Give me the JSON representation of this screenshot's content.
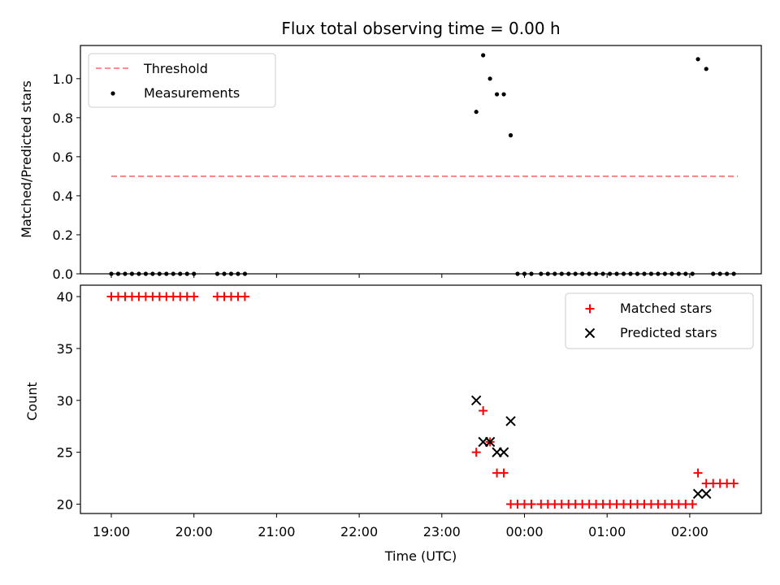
{
  "chart_data": [
    {
      "type": "scatter",
      "title": "Flux total observing time = 0.00 h",
      "ylabel": "Matched/Predicted stars",
      "xlabel": "",
      "ylim": [
        0,
        1.17
      ],
      "yticks": [
        "0.0",
        "0.2",
        "0.4",
        "0.6",
        "0.8",
        "1.0"
      ],
      "yticks_values": [
        0,
        0.2,
        0.4,
        0.6,
        0.8,
        1.0
      ],
      "legend_position": "top-left",
      "threshold": {
        "name": "Threshold",
        "y": 0.5,
        "x_start": "19:00",
        "x_end": "02:35",
        "color": "#ff7f7f",
        "style": "dashed"
      },
      "series": [
        {
          "name": "Measurements",
          "color": "#000000",
          "marker": "dot",
          "points": [
            [
              "19:00",
              0
            ],
            [
              "19:05",
              0
            ],
            [
              "19:10",
              0
            ],
            [
              "19:15",
              0
            ],
            [
              "19:20",
              0
            ],
            [
              "19:25",
              0
            ],
            [
              "19:30",
              0
            ],
            [
              "19:35",
              0
            ],
            [
              "19:40",
              0
            ],
            [
              "19:45",
              0
            ],
            [
              "19:50",
              0
            ],
            [
              "19:55",
              0
            ],
            [
              "20:00",
              0
            ],
            [
              "20:17",
              0
            ],
            [
              "20:22",
              0
            ],
            [
              "20:27",
              0
            ],
            [
              "20:32",
              0
            ],
            [
              "20:37",
              0
            ],
            [
              "23:25",
              0.83
            ],
            [
              "23:30",
              1.12
            ],
            [
              "23:35",
              1.0
            ],
            [
              "23:40",
              0.92
            ],
            [
              "23:45",
              0.92
            ],
            [
              "23:50",
              0.71
            ],
            [
              "23:55",
              0
            ],
            [
              "00:00",
              0
            ],
            [
              "00:05",
              0
            ],
            [
              "00:12",
              0
            ],
            [
              "00:17",
              0
            ],
            [
              "00:22",
              0
            ],
            [
              "00:27",
              0
            ],
            [
              "00:32",
              0
            ],
            [
              "00:37",
              0
            ],
            [
              "00:42",
              0
            ],
            [
              "00:47",
              0
            ],
            [
              "00:52",
              0
            ],
            [
              "00:57",
              0
            ],
            [
              "01:02",
              0
            ],
            [
              "01:07",
              0
            ],
            [
              "01:12",
              0
            ],
            [
              "01:17",
              0
            ],
            [
              "01:22",
              0
            ],
            [
              "01:27",
              0
            ],
            [
              "01:32",
              0
            ],
            [
              "01:37",
              0
            ],
            [
              "01:42",
              0
            ],
            [
              "01:47",
              0
            ],
            [
              "01:52",
              0
            ],
            [
              "01:57",
              0
            ],
            [
              "02:02",
              0
            ],
            [
              "02:06",
              1.1
            ],
            [
              "02:12",
              1.05
            ],
            [
              "02:17",
              0
            ],
            [
              "02:22",
              0
            ],
            [
              "02:27",
              0
            ],
            [
              "02:32",
              0
            ]
          ]
        }
      ]
    },
    {
      "type": "scatter",
      "title": "",
      "ylabel": "Count",
      "xlabel": "Time (UTC)",
      "ylim": [
        19.1,
        41.1
      ],
      "yticks": [
        "20",
        "25",
        "30",
        "35",
        "40"
      ],
      "yticks_values": [
        20,
        25,
        30,
        35,
        40
      ],
      "xticks": [
        "19:00",
        "20:00",
        "21:00",
        "22:00",
        "23:00",
        "00:00",
        "01:00",
        "02:00"
      ],
      "legend_position": "top-right",
      "series": [
        {
          "name": "Matched stars",
          "color": "#ff0000",
          "marker": "plus",
          "points": [
            [
              "19:00",
              40
            ],
            [
              "19:05",
              40
            ],
            [
              "19:10",
              40
            ],
            [
              "19:15",
              40
            ],
            [
              "19:20",
              40
            ],
            [
              "19:25",
              40
            ],
            [
              "19:30",
              40
            ],
            [
              "19:35",
              40
            ],
            [
              "19:40",
              40
            ],
            [
              "19:45",
              40
            ],
            [
              "19:50",
              40
            ],
            [
              "19:55",
              40
            ],
            [
              "20:00",
              40
            ],
            [
              "20:17",
              40
            ],
            [
              "20:22",
              40
            ],
            [
              "20:27",
              40
            ],
            [
              "20:32",
              40
            ],
            [
              "20:37",
              40
            ],
            [
              "23:25",
              25
            ],
            [
              "23:30",
              29
            ],
            [
              "23:35",
              26
            ],
            [
              "23:40",
              23
            ],
            [
              "23:45",
              23
            ],
            [
              "23:50",
              20
            ],
            [
              "23:55",
              20
            ],
            [
              "00:00",
              20
            ],
            [
              "00:05",
              20
            ],
            [
              "00:12",
              20
            ],
            [
              "00:17",
              20
            ],
            [
              "00:22",
              20
            ],
            [
              "00:27",
              20
            ],
            [
              "00:32",
              20
            ],
            [
              "00:37",
              20
            ],
            [
              "00:42",
              20
            ],
            [
              "00:47",
              20
            ],
            [
              "00:52",
              20
            ],
            [
              "00:57",
              20
            ],
            [
              "01:02",
              20
            ],
            [
              "01:07",
              20
            ],
            [
              "01:12",
              20
            ],
            [
              "01:17",
              20
            ],
            [
              "01:22",
              20
            ],
            [
              "01:27",
              20
            ],
            [
              "01:32",
              20
            ],
            [
              "01:37",
              20
            ],
            [
              "01:42",
              20
            ],
            [
              "01:47",
              20
            ],
            [
              "01:52",
              20
            ],
            [
              "01:57",
              20
            ],
            [
              "02:02",
              20
            ],
            [
              "02:06",
              23
            ],
            [
              "02:12",
              22
            ],
            [
              "02:17",
              22
            ],
            [
              "02:22",
              22
            ],
            [
              "02:27",
              22
            ],
            [
              "02:32",
              22
            ]
          ]
        },
        {
          "name": "Predicted stars",
          "color": "#000000",
          "marker": "x",
          "points": [
            [
              "23:25",
              30
            ],
            [
              "23:30",
              26
            ],
            [
              "23:35",
              26
            ],
            [
              "23:40",
              25
            ],
            [
              "23:45",
              25
            ],
            [
              "23:50",
              28
            ],
            [
              "02:06",
              21
            ],
            [
              "02:12",
              21
            ]
          ]
        }
      ]
    }
  ]
}
